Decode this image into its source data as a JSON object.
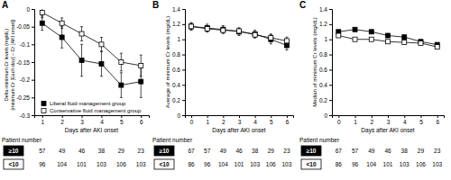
{
  "chart_data": [
    {
      "type": "line",
      "title": "A",
      "xlabel": "Days after AKI onset",
      "ylabel": [
        "Delta-minimum Cr levels (mg/dL)",
        "(minimum Cr [Each day] – Cr [AKI onset])"
      ],
      "x": [
        1,
        2,
        3,
        4,
        5,
        6
      ],
      "xlim": [
        0.6,
        6.4
      ],
      "xticks": [
        1,
        2,
        3,
        4,
        5,
        6
      ],
      "ylim": [
        -0.3,
        0
      ],
      "yticks": [
        0,
        -0.05,
        -0.1,
        -0.15,
        -0.2,
        -0.25,
        -0.3
      ],
      "legend": "lower left",
      "series": [
        {
          "name": "Liberal fluid management group",
          "color": "#000000",
          "marker": "square",
          "line_style": "solid",
          "values": [
            -0.04,
            -0.08,
            -0.145,
            -0.155,
            -0.215,
            -0.205
          ],
          "errors": [
            0.02,
            0.03,
            0.045,
            0.035,
            0.035,
            0.045
          ]
        },
        {
          "name": "Conservative fluid management group",
          "color": "#ffffff",
          "marker": "square",
          "line_style": "solid",
          "values": [
            -0.01,
            -0.04,
            -0.07,
            -0.1,
            -0.15,
            -0.16
          ],
          "errors": [
            0.015,
            0.015,
            0.02,
            0.02,
            0.025,
            0.03
          ]
        }
      ],
      "table": {
        "title": "Patient number",
        "rows": [
          {
            "label": "≥10",
            "color": "#000000",
            "values": [
              57,
              49,
              46,
              38,
              29,
              23
            ]
          },
          {
            "label": "<10",
            "color": "#ffffff",
            "values": [
              96,
              104,
              101,
              103,
              106,
              103
            ]
          }
        ]
      }
    },
    {
      "type": "line",
      "title": "B",
      "xlabel": "Days after AKI onset",
      "ylabel": [
        "Average of minimum Cr levels (mg/dL)"
      ],
      "x": [
        0,
        1,
        2,
        3,
        4,
        5,
        6
      ],
      "xlim": [
        -0.4,
        6.4
      ],
      "xticks": [
        0,
        1,
        2,
        3,
        4,
        5,
        6
      ],
      "ylim": [
        0,
        1.4
      ],
      "yticks": [
        0,
        0.2,
        0.4,
        0.6,
        0.8,
        1,
        1.2,
        1.4
      ],
      "series": [
        {
          "color": "#000000",
          "marker": "square",
          "line_style": "solid",
          "values": [
            1.17,
            1.15,
            1.13,
            1.1,
            1.07,
            1.0,
            0.92
          ],
          "errors": [
            0.05,
            0.05,
            0.05,
            0.05,
            0.05,
            0.06,
            0.06
          ]
        },
        {
          "color": "#ffffff",
          "marker": "square",
          "line_style": "solid",
          "values": [
            1.17,
            1.14,
            1.12,
            1.11,
            1.06,
            1.02,
            0.98
          ],
          "errors": [
            0.04,
            0.04,
            0.04,
            0.04,
            0.04,
            0.05,
            0.05
          ]
        }
      ],
      "table": {
        "title": "Patient number",
        "rows": [
          {
            "label": "≥10",
            "color": "#000000",
            "values": [
              67,
              57,
              49,
              46,
              38,
              29,
              23
            ]
          },
          {
            "label": "<10",
            "color": "#ffffff",
            "values": [
              86,
              96,
              104,
              101,
              103,
              106,
              103
            ]
          }
        ]
      }
    },
    {
      "type": "line",
      "title": "C",
      "xlabel": "Days after AKI onset",
      "ylabel": [
        "Median of minimum Cr levels (mg/dL)"
      ],
      "x": [
        0,
        1,
        2,
        3,
        4,
        5,
        6
      ],
      "xlim": [
        -0.4,
        6.4
      ],
      "xticks": [
        0,
        1,
        2,
        3,
        4,
        5,
        6
      ],
      "ylim": [
        0,
        1.4
      ],
      "yticks": [
        0,
        0.2,
        0.4,
        0.6,
        0.8,
        1,
        1.2,
        1.4
      ],
      "series": [
        {
          "color": "#000000",
          "marker": "square",
          "line_style": "solid",
          "values": [
            1.1,
            1.13,
            1.1,
            1.05,
            1.03,
            0.97,
            0.93
          ]
        },
        {
          "color": "#ffffff",
          "marker": "square",
          "line_style": "solid",
          "values": [
            1.05,
            1.0,
            1.0,
            0.97,
            0.96,
            0.95,
            0.9
          ]
        }
      ],
      "table": {
        "title": "Patient number",
        "rows": [
          {
            "label": "≥10",
            "color": "#000000",
            "values": [
              67,
              57,
              49,
              46,
              38,
              29,
              23
            ]
          },
          {
            "label": "<10",
            "color": "#ffffff",
            "values": [
              86,
              96,
              104,
              101,
              103,
              106,
              103
            ]
          }
        ]
      }
    }
  ]
}
